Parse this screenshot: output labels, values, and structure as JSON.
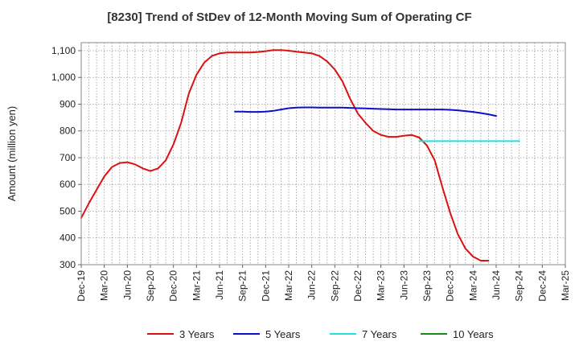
{
  "chart_data": {
    "type": "line",
    "title": "[8230]  Trend of StDev of 12-Month Moving Sum of Operating CF",
    "ylabel": "Amount (million yen)",
    "xlabel": "",
    "ylim": [
      300,
      1130
    ],
    "y_ticks": [
      300,
      400,
      500,
      600,
      700,
      800,
      900,
      1000,
      1100
    ],
    "y_tick_labels": [
      "300",
      "400",
      "500",
      "600",
      "700",
      "800",
      "900",
      "1,000",
      "1,100"
    ],
    "x_ticks": [
      "Dec-19",
      "Mar-20",
      "Jun-20",
      "Sep-20",
      "Dec-20",
      "Mar-21",
      "Jun-21",
      "Sep-21",
      "Dec-21",
      "Mar-22",
      "Jun-22",
      "Sep-22",
      "Dec-22",
      "Mar-23",
      "Jun-23",
      "Sep-23",
      "Dec-23",
      "Mar-24",
      "Jun-24",
      "Sep-24",
      "Dec-24",
      "Mar-25"
    ],
    "grid": true,
    "legend_position": "bottom",
    "series": [
      {
        "name": "3 Years",
        "color": "#dd1111",
        "start": "Dec-19",
        "values": [
          475,
          530,
          580,
          630,
          665,
          680,
          683,
          675,
          660,
          650,
          660,
          690,
          750,
          830,
          940,
          1010,
          1055,
          1080,
          1090,
          1093,
          1093,
          1093,
          1093,
          1095,
          1098,
          1102,
          1102,
          1100,
          1096,
          1093,
          1090,
          1080,
          1060,
          1030,
          985,
          920,
          865,
          830,
          800,
          785,
          778,
          778,
          782,
          785,
          775,
          745,
          690,
          590,
          495,
          415,
          360,
          330,
          315,
          315
        ]
      },
      {
        "name": "5 Years",
        "color": "#0a10cc",
        "start": "Aug-21",
        "values": [
          872,
          872,
          871,
          871,
          872,
          875,
          880,
          885,
          887,
          888,
          888,
          887,
          887,
          887,
          887,
          886,
          885,
          884,
          883,
          882,
          881,
          880,
          880,
          880,
          880,
          880,
          880,
          880,
          879,
          877,
          874,
          871,
          867,
          862,
          856
        ]
      },
      {
        "name": "7 Years",
        "color": "#22e0e0",
        "start": "Aug-23",
        "values": [
          762,
          762,
          762,
          762,
          762,
          762,
          762,
          762,
          762,
          762,
          762,
          762,
          762,
          762
        ]
      },
      {
        "name": "10 Years",
        "color": "#1a8a1a",
        "start": "Dec-19",
        "values": []
      }
    ]
  }
}
